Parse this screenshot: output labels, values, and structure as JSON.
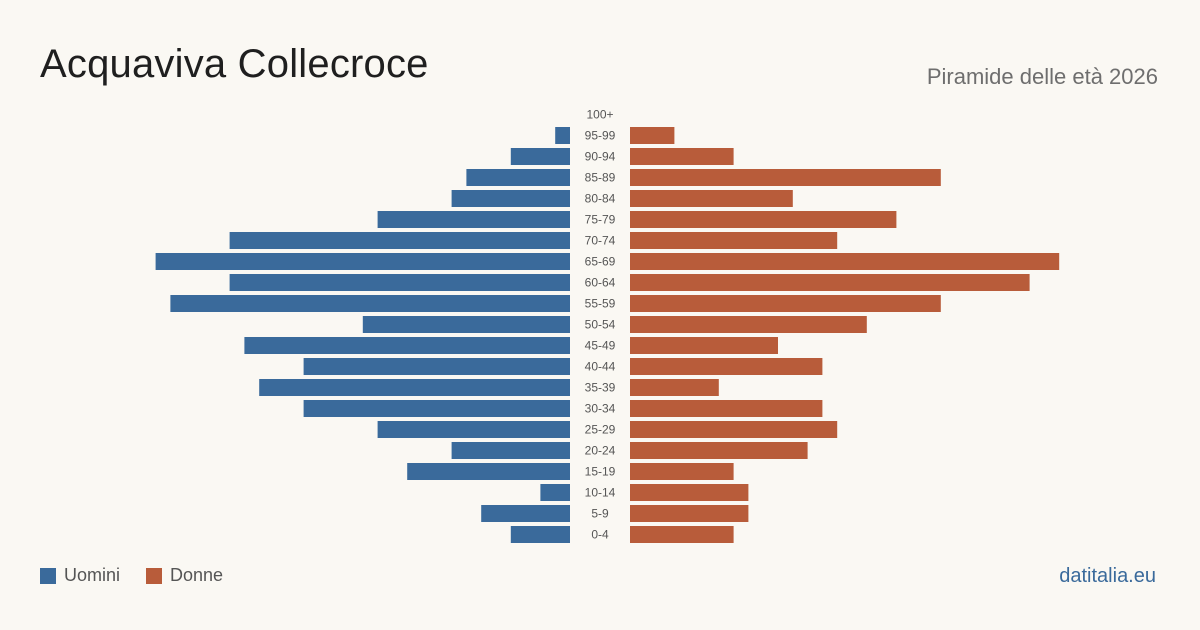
{
  "header": {
    "title": "Acquaviva Collecroce",
    "subtitle": "Piramide delle età 2026"
  },
  "legend": {
    "men_label": "Uomini",
    "women_label": "Donne"
  },
  "brand": "datitalia.eu",
  "colors": {
    "men": "#3a6a9b",
    "women": "#b85c3a",
    "background": "#faf8f3"
  },
  "chart_data": {
    "type": "bar",
    "orientation": "horizontal-pyramid",
    "title": "Acquaviva Collecroce",
    "subtitle": "Piramide delle età 2026",
    "categories": [
      "100+",
      "95-99",
      "90-94",
      "85-89",
      "80-84",
      "75-79",
      "70-74",
      "65-69",
      "60-64",
      "55-59",
      "50-54",
      "45-49",
      "40-44",
      "35-39",
      "30-34",
      "25-29",
      "20-24",
      "15-19",
      "10-14",
      "5-9",
      "0-4"
    ],
    "series": [
      {
        "name": "Uomini",
        "values": [
          0,
          1,
          4,
          7,
          8,
          13,
          23,
          28,
          23,
          27,
          14,
          22,
          18,
          21,
          18,
          13,
          8,
          11,
          2,
          6,
          4
        ]
      },
      {
        "name": "Donne",
        "values": [
          0,
          3,
          7,
          21,
          11,
          18,
          14,
          29,
          27,
          21,
          16,
          10,
          13,
          6,
          13,
          14,
          12,
          7,
          8,
          8,
          7
        ]
      }
    ],
    "xlabel": "",
    "ylabel": "",
    "grid": false,
    "legend_position": "bottom-left"
  }
}
